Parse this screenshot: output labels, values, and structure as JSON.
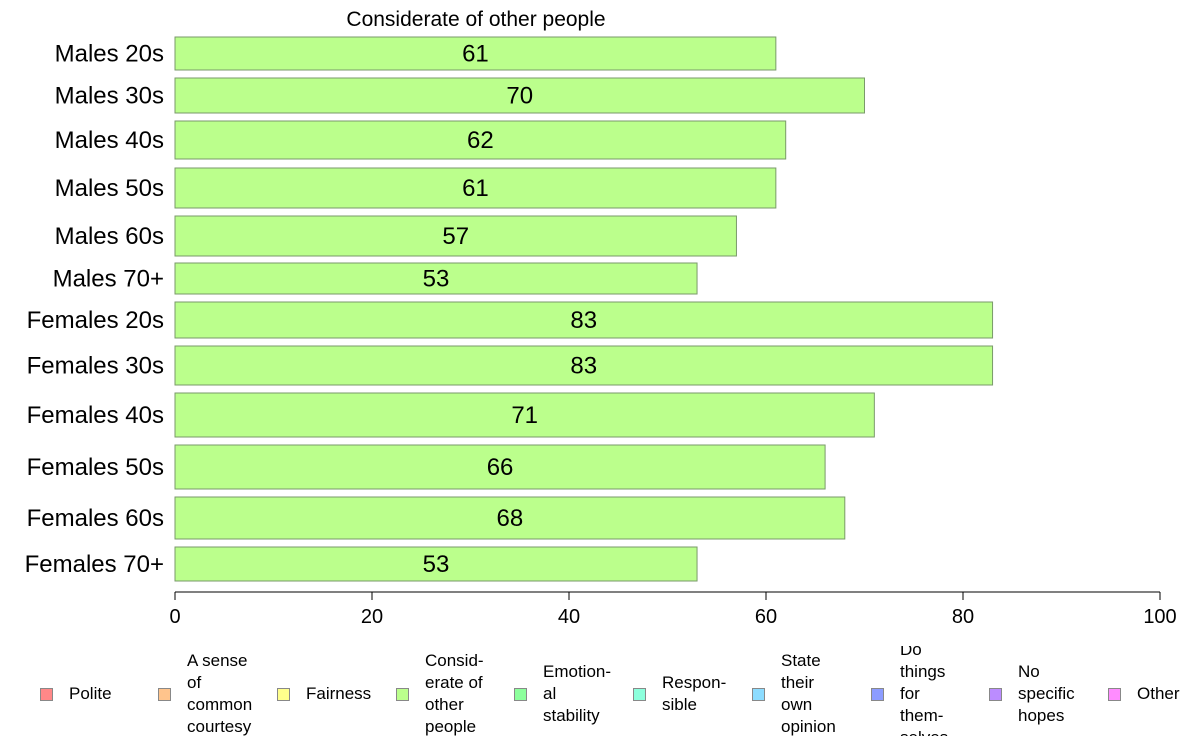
{
  "chart_data": {
    "type": "bar",
    "orientation": "horizontal",
    "title": "Considerate of other people",
    "categories": [
      "Males 20s",
      "Males 30s",
      "Males 40s",
      "Males 50s",
      "Males 60s",
      "Males 70+",
      "Females 20s",
      "Females 30s",
      "Females 40s",
      "Females 50s",
      "Females 60s",
      "Females 70+"
    ],
    "values": [
      61,
      70,
      62,
      61,
      57,
      53,
      83,
      83,
      71,
      66,
      68,
      53
    ],
    "xlim": [
      0,
      100
    ],
    "xticks": [
      0,
      20,
      40,
      60,
      80,
      100
    ],
    "bar_color": "#bbff8c",
    "bar_edge_color": "#7a9a6a",
    "grid": false,
    "legend_position": "bottom"
  },
  "legend": [
    {
      "label": "Polite",
      "color": "#ff8888"
    },
    {
      "label": "A sense\nof\ncommon\ncourtesy",
      "color": "#ffc48c"
    },
    {
      "label": "Fairness",
      "color": "#ffff8c"
    },
    {
      "label": "Consid-\nerate of\nother\npeople",
      "color": "#bbff8c"
    },
    {
      "label": "Emotion-\nal\nstability",
      "color": "#8cff9c"
    },
    {
      "label": "Respon-\nsible",
      "color": "#8cffdc"
    },
    {
      "label": "State\ntheir\nown\nopinion",
      "color": "#8cdcff"
    },
    {
      "label": "Do\nthings\nfor\nthem-\nselves",
      "color": "#8c9cff"
    },
    {
      "label": "No\nspecific\nhopes",
      "color": "#bb8cff"
    },
    {
      "label": "Other",
      "color": "#ff8cff"
    }
  ]
}
